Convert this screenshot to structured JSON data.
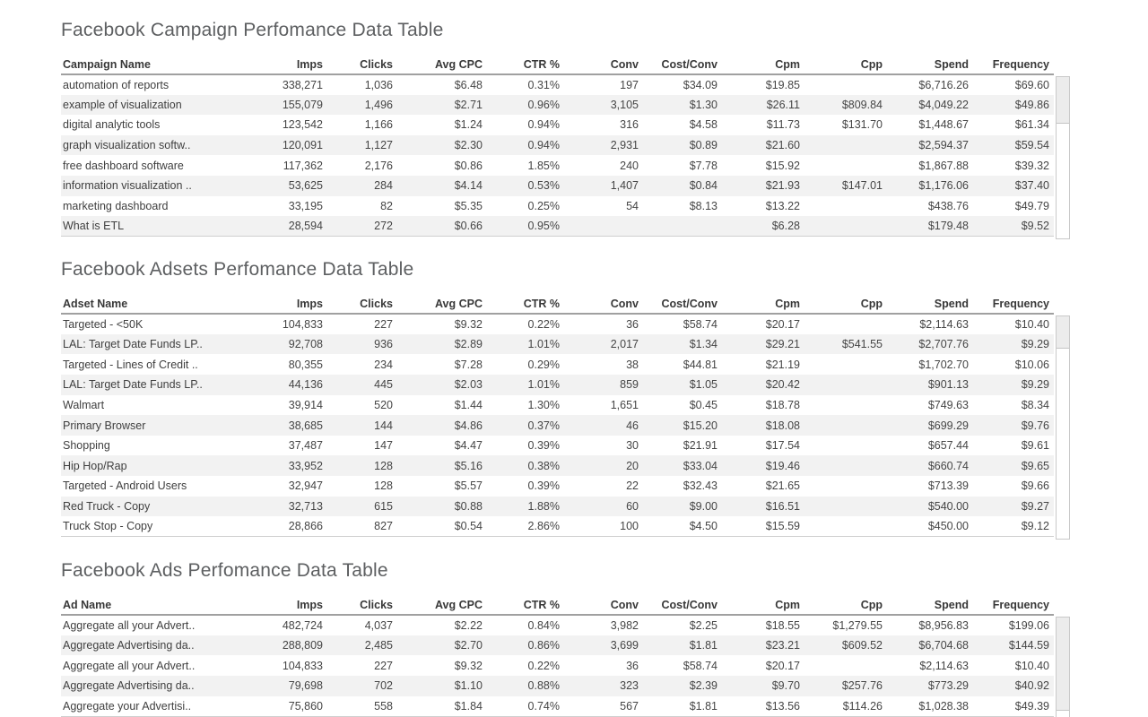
{
  "colors": {
    "title_text": "#5d5f61",
    "header_text": "#383838",
    "cell_text": "#454545",
    "row_stripe": "#f2f2f2",
    "header_rule": "#a0a0a0",
    "table_bottom_rule": "#cfcfcf",
    "scrollbar_border": "#c9c9c9",
    "scrollbar_thumb": "#ececec"
  },
  "tables": [
    {
      "title": "Facebook Campaign Perfomance Data Table",
      "columns": [
        "Campaign Name",
        "Imps",
        "Clicks",
        "Avg CPC",
        "CTR %",
        "Conv",
        "Cost/Conv",
        "Cpm",
        "Cpp",
        "Spend",
        "Frequency"
      ],
      "rows": [
        [
          "automation of reports",
          "338,271",
          "1,036",
          "$6.48",
          "0.31%",
          "197",
          "$34.09",
          "$19.85",
          "",
          "$6,716.26",
          "$69.60"
        ],
        [
          "example of visualization",
          "155,079",
          "1,496",
          "$2.71",
          "0.96%",
          "3,105",
          "$1.30",
          "$26.11",
          "$809.84",
          "$4,049.22",
          "$49.86"
        ],
        [
          "digital analytic tools",
          "123,542",
          "1,166",
          "$1.24",
          "0.94%",
          "316",
          "$4.58",
          "$11.73",
          "$131.70",
          "$1,448.67",
          "$61.34"
        ],
        [
          "graph visualization softw..",
          "120,091",
          "1,127",
          "$2.30",
          "0.94%",
          "2,931",
          "$0.89",
          "$21.60",
          "",
          "$2,594.37",
          "$59.54"
        ],
        [
          "free dashboard software",
          "117,362",
          "2,176",
          "$0.86",
          "1.85%",
          "240",
          "$7.78",
          "$15.92",
          "",
          "$1,867.88",
          "$39.32"
        ],
        [
          "information visualization ..",
          "53,625",
          "284",
          "$4.14",
          "0.53%",
          "1,407",
          "$0.84",
          "$21.93",
          "$147.01",
          "$1,176.06",
          "$37.40"
        ],
        [
          "marketing dashboard",
          "33,195",
          "82",
          "$5.35",
          "0.25%",
          "54",
          "$8.13",
          "$13.22",
          "",
          "$438.76",
          "$49.79"
        ],
        [
          "What is ETL",
          "28,594",
          "272",
          "$0.66",
          "0.95%",
          "",
          "",
          "$6.28",
          "",
          "$179.48",
          "$9.52"
        ]
      ]
    },
    {
      "title": "Facebook Adsets Perfomance Data Table",
      "columns": [
        "Adset Name",
        "Imps",
        "Clicks",
        "Avg CPC",
        "CTR %",
        "Conv",
        "Cost/Conv",
        "Cpm",
        "Cpp",
        "Spend",
        "Frequency"
      ],
      "rows": [
        [
          "Targeted - <50K",
          "104,833",
          "227",
          "$9.32",
          "0.22%",
          "36",
          "$58.74",
          "$20.17",
          "",
          "$2,114.63",
          "$10.40"
        ],
        [
          "LAL: Target Date Funds LP..",
          "92,708",
          "936",
          "$2.89",
          "1.01%",
          "2,017",
          "$1.34",
          "$29.21",
          "$541.55",
          "$2,707.76",
          "$9.29"
        ],
        [
          "Targeted - Lines of Credit ..",
          "80,355",
          "234",
          "$7.28",
          "0.29%",
          "38",
          "$44.81",
          "$21.19",
          "",
          "$1,702.70",
          "$10.06"
        ],
        [
          "LAL: Target Date Funds LP..",
          "44,136",
          "445",
          "$2.03",
          "1.01%",
          "859",
          "$1.05",
          "$20.42",
          "",
          "$901.13",
          "$9.29"
        ],
        [
          "Walmart",
          "39,914",
          "520",
          "$1.44",
          "1.30%",
          "1,651",
          "$0.45",
          "$18.78",
          "",
          "$749.63",
          "$8.34"
        ],
        [
          "Primary Browser",
          "38,685",
          "144",
          "$4.86",
          "0.37%",
          "46",
          "$15.20",
          "$18.08",
          "",
          "$699.29",
          "$9.76"
        ],
        [
          "Shopping",
          "37,487",
          "147",
          "$4.47",
          "0.39%",
          "30",
          "$21.91",
          "$17.54",
          "",
          "$657.44",
          "$9.61"
        ],
        [
          "Hip Hop/Rap",
          "33,952",
          "128",
          "$5.16",
          "0.38%",
          "20",
          "$33.04",
          "$19.46",
          "",
          "$660.74",
          "$9.65"
        ],
        [
          "Targeted - Android Users",
          "32,947",
          "128",
          "$5.57",
          "0.39%",
          "22",
          "$32.43",
          "$21.65",
          "",
          "$713.39",
          "$9.66"
        ],
        [
          "Red Truck - Copy",
          "32,713",
          "615",
          "$0.88",
          "1.88%",
          "60",
          "$9.00",
          "$16.51",
          "",
          "$540.00",
          "$9.27"
        ],
        [
          "Truck Stop - Copy",
          "28,866",
          "827",
          "$0.54",
          "2.86%",
          "100",
          "$4.50",
          "$15.59",
          "",
          "$450.00",
          "$9.12"
        ]
      ]
    },
    {
      "title": "Facebook Ads Perfomance Data Table",
      "columns": [
        "Ad Name",
        "Imps",
        "Clicks",
        "Avg CPC",
        "CTR %",
        "Conv",
        "Cost/Conv",
        "Cpm",
        "Cpp",
        "Spend",
        "Frequency"
      ],
      "rows": [
        [
          "Aggregate all your Advert..",
          "482,724",
          "4,037",
          "$2.22",
          "0.84%",
          "3,982",
          "$2.25",
          "$18.55",
          "$1,279.55",
          "$8,956.83",
          "$199.06"
        ],
        [
          "Aggregate Advertising da..",
          "288,809",
          "2,485",
          "$2.70",
          "0.86%",
          "3,699",
          "$1.81",
          "$23.21",
          "$609.52",
          "$6,704.68",
          "$144.59"
        ],
        [
          "Aggregate all your Advert..",
          "104,833",
          "227",
          "$9.32",
          "0.22%",
          "36",
          "$58.74",
          "$20.17",
          "",
          "$2,114.63",
          "$10.40"
        ],
        [
          "Aggregate Advertising da..",
          "79,698",
          "702",
          "$1.10",
          "0.88%",
          "323",
          "$2.39",
          "$9.70",
          "$257.76",
          "$773.29",
          "$40.92"
        ],
        [
          "Aggregate your Advertisi..",
          "75,860",
          "558",
          "$1.84",
          "0.74%",
          "567",
          "$1.81",
          "$13.56",
          "$114.26",
          "$1,028.38",
          "$49.39"
        ]
      ]
    }
  ]
}
